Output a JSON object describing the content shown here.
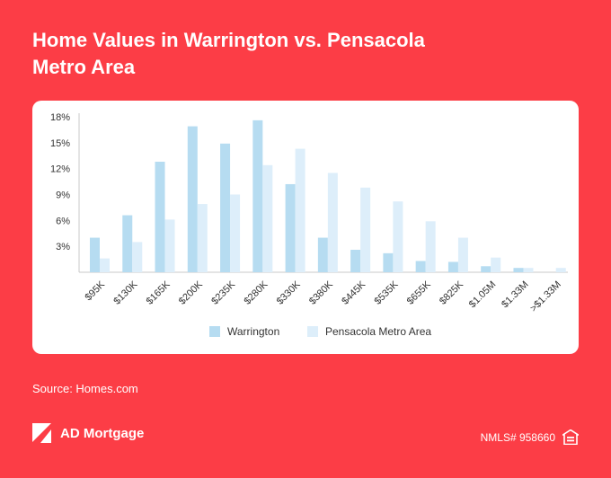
{
  "header": {
    "title_line1": "Home Values in Warrington vs. Pensacola",
    "title_line2": "Metro Area"
  },
  "footer": {
    "source": "Source: Homes.com",
    "brand": "AD Mortgage",
    "nmls": "NMLS# 958660",
    "logo_icon": "ad-mortgage-logo-icon",
    "eho_icon": "equal-housing-icon"
  },
  "colors": {
    "background": "#fc3d46",
    "warrington": "#b6dcf1",
    "pensacola": "#ddeefa"
  },
  "chart_data": {
    "type": "bar",
    "categories": [
      "$95K",
      "$130K",
      "$165K",
      "$200K",
      "$235K",
      "$280K",
      "$330K",
      "$380K",
      "$445K",
      "$535K",
      "$655K",
      "$825K",
      "$1.05M",
      "$1.33M",
      ">$1.33M"
    ],
    "series": [
      {
        "name": "Warrington",
        "values": [
          4.0,
          6.6,
          12.8,
          16.9,
          14.9,
          17.6,
          10.2,
          4.0,
          2.6,
          2.2,
          1.3,
          1.2,
          0.7,
          0.5,
          0.0
        ]
      },
      {
        "name": "Pensacola Metro Area",
        "values": [
          1.6,
          3.5,
          6.1,
          7.9,
          9.0,
          12.4,
          14.3,
          11.5,
          9.8,
          8.2,
          5.9,
          4.0,
          1.7,
          0.5,
          0.5
        ]
      }
    ],
    "yticks": [
      "18%",
      "15%",
      "12%",
      "9%",
      "6%",
      "3%"
    ],
    "ylim": [
      0,
      18
    ],
    "legend": "bottom-center",
    "grid": false
  }
}
